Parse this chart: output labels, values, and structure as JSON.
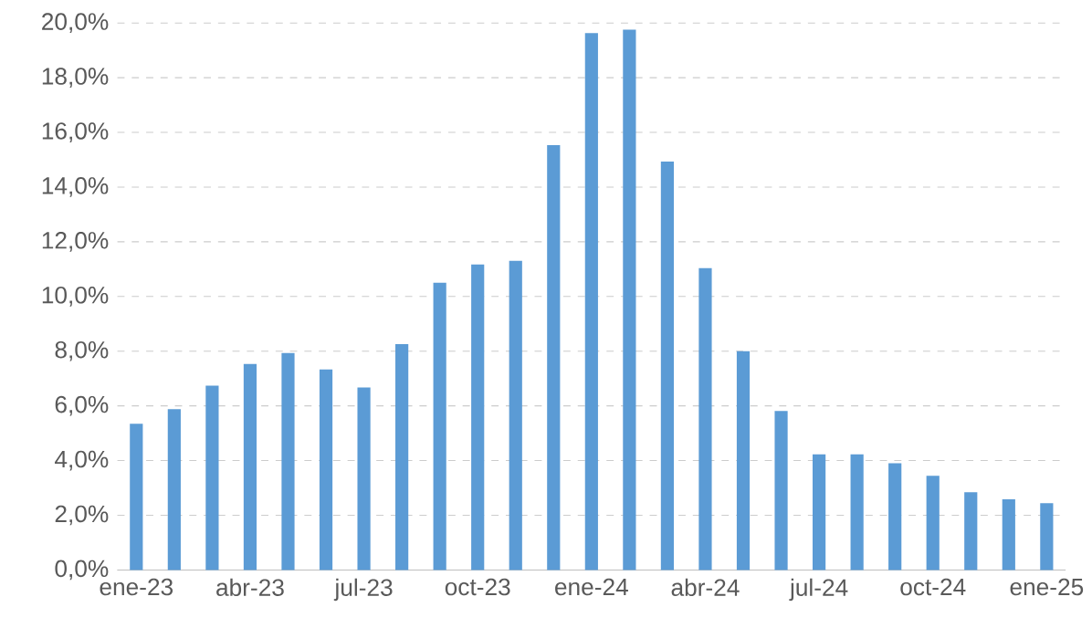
{
  "chart_data": {
    "type": "bar",
    "categories": [
      "ene-23",
      null,
      null,
      "abr-23",
      null,
      null,
      "jul-23",
      null,
      null,
      "oct-23",
      null,
      null,
      "ene-24",
      null,
      null,
      "abr-24",
      null,
      null,
      "jul-24",
      null,
      null,
      "oct-24",
      null,
      null,
      "ene-25"
    ],
    "values": [
      5.35,
      5.88,
      6.74,
      7.53,
      7.93,
      7.33,
      6.67,
      8.26,
      10.5,
      11.17,
      11.3,
      15.53,
      19.63,
      19.76,
      14.93,
      11.04,
      8.0,
      5.81,
      4.23,
      4.23,
      3.9,
      3.44,
      2.84,
      2.58,
      2.44
    ],
    "color": "#5b9bd5",
    "ylim": [
      0,
      20
    ],
    "yticks": [
      {
        "value": 0,
        "label": "0,0%"
      },
      {
        "value": 2,
        "label": "2,0%"
      },
      {
        "value": 4,
        "label": "4,0%"
      },
      {
        "value": 6,
        "label": "6,0%"
      },
      {
        "value": 8,
        "label": "8,0%"
      },
      {
        "value": 10,
        "label": "10,0%"
      },
      {
        "value": 12,
        "label": "12,0%"
      },
      {
        "value": 14,
        "label": "14,0%"
      },
      {
        "value": 16,
        "label": "16,0%"
      },
      {
        "value": 18,
        "label": "18,0%"
      },
      {
        "value": 20,
        "label": "20,0%"
      }
    ],
    "grid": "y"
  }
}
